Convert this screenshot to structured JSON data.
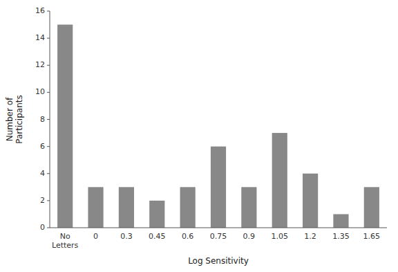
{
  "chart_data": {
    "type": "bar",
    "categories": [
      "No\nLetters",
      "0",
      "0.3",
      "0.45",
      "0.6",
      "0.75",
      "0.9",
      "1.05",
      "1.2",
      "1.35",
      "1.65"
    ],
    "values": [
      15,
      3,
      3,
      2,
      3,
      6,
      3,
      7,
      4,
      1,
      3
    ],
    "color": "#888888",
    "xlabel": "Log Sensitivity",
    "ylabel": "Number of\nParticipants",
    "ylim": [
      0,
      16
    ],
    "yticks": [
      0,
      2,
      4,
      6,
      8,
      10,
      12,
      14,
      16
    ],
    "grid": false
  }
}
